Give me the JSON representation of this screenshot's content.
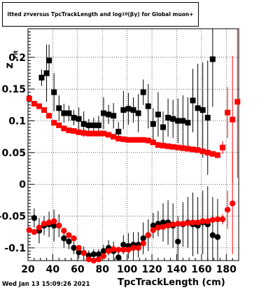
{
  "chart_data": {
    "type": "scatter",
    "title": "itted  z_{π} versus TpcTrackLength and log_{10}(βγ) for Global muon+",
    "title_parts": {
      "lead": "itted  z",
      "sub1": "π",
      "mid": " versus TpcTrackLength and log",
      "sub2": "10",
      "tail": "(βγ) for Global muon+"
    },
    "ylabel": "z",
    "ylabel_sub": "Fit",
    "xlabel": "TpcTrackLength (cm)",
    "xlim": [
      20,
      190
    ],
    "ylim": [
      -0.12,
      0.245
    ],
    "xticks": [
      20,
      40,
      60,
      80,
      100,
      120,
      140,
      160,
      180
    ],
    "xtick_labels": [
      "20",
      "40",
      "60",
      "80",
      "100",
      "120",
      "140",
      "160",
      "180"
    ],
    "yticks": [
      -0.1,
      -0.05,
      0,
      0.05,
      0.1,
      0.15,
      0.2
    ],
    "ytick_labels": [
      "-0.1",
      "-0.05",
      "0",
      "0.05",
      "0.1",
      "0.15",
      "0.2"
    ],
    "grid": true,
    "series": [
      {
        "marker": "square",
        "color": "#000000",
        "points": [
          [
            31,
            0.168,
            0.013
          ],
          [
            35,
            0.175,
            0.045
          ],
          [
            37,
            0.195,
            0.025
          ],
          [
            41,
            0.145,
            0.03
          ],
          [
            45,
            0.12,
            0.02
          ],
          [
            49,
            0.112,
            0.015
          ],
          [
            53,
            0.112,
            0.012
          ],
          [
            57,
            0.105,
            0.012
          ],
          [
            61,
            0.103,
            0.018
          ],
          [
            65,
            0.095,
            0.02
          ],
          [
            69,
            0.093,
            0.01
          ],
          [
            73,
            0.093,
            0.012
          ],
          [
            77,
            0.093,
            0.015
          ],
          [
            81,
            0.112,
            0.025
          ],
          [
            85,
            0.11,
            0.015
          ],
          [
            89,
            0.108,
            0.02
          ],
          [
            93,
            0.083,
            0.015
          ],
          [
            97,
            0.117,
            0.03
          ],
          [
            101,
            0.119,
            0.025
          ],
          [
            105,
            0.117,
            0.02
          ],
          [
            109,
            0.112,
            0.03
          ],
          [
            113,
            0.145,
            0.02
          ],
          [
            117,
            0.123,
            0.035
          ],
          [
            121,
            0.095,
            0.025
          ],
          [
            125,
            0.11,
            0.035
          ],
          [
            129,
            0.09,
            0.025
          ],
          [
            133,
            0.105,
            0.03
          ],
          [
            137,
            0.103,
            0.03
          ],
          [
            141,
            0.1,
            0.035
          ],
          [
            145,
            0.1,
            0.04
          ],
          [
            149,
            0.097,
            0.04
          ],
          [
            153,
            0.132,
            0.05
          ],
          [
            157,
            0.12,
            0.07
          ],
          [
            161,
            0.117,
            0.075
          ],
          [
            165,
            0.105,
            0.09
          ],
          [
            169,
            0.197,
            0.075
          ]
        ]
      },
      {
        "marker": "square",
        "color": "#ff0000",
        "points": [
          [
            21,
            0.135,
            0.003
          ],
          [
            25,
            0.127,
            0.003
          ],
          [
            29,
            0.123,
            0.003
          ],
          [
            33,
            0.117,
            0.003
          ],
          [
            37,
            0.108,
            0.003
          ],
          [
            41,
            0.097,
            0.002
          ],
          [
            45,
            0.093,
            0.002
          ],
          [
            49,
            0.088,
            0.002
          ],
          [
            53,
            0.085,
            0.002
          ],
          [
            57,
            0.084,
            0.002
          ],
          [
            61,
            0.082,
            0.002
          ],
          [
            65,
            0.081,
            0.002
          ],
          [
            69,
            0.08,
            0.002
          ],
          [
            73,
            0.08,
            0.002
          ],
          [
            77,
            0.08,
            0.002
          ],
          [
            81,
            0.08,
            0.002
          ],
          [
            85,
            0.078,
            0.002
          ],
          [
            89,
            0.075,
            0.002
          ],
          [
            93,
            0.072,
            0.002
          ],
          [
            97,
            0.071,
            0.002
          ],
          [
            101,
            0.07,
            0.002
          ],
          [
            105,
            0.07,
            0.002
          ],
          [
            109,
            0.07,
            0.002
          ],
          [
            113,
            0.07,
            0.002
          ],
          [
            117,
            0.069,
            0.002
          ],
          [
            121,
            0.066,
            0.002
          ],
          [
            125,
            0.062,
            0.002
          ],
          [
            129,
            0.061,
            0.002
          ],
          [
            133,
            0.06,
            0.002
          ],
          [
            137,
            0.059,
            0.002
          ],
          [
            141,
            0.058,
            0.002
          ],
          [
            145,
            0.057,
            0.002
          ],
          [
            149,
            0.056,
            0.002
          ],
          [
            153,
            0.055,
            0.002
          ],
          [
            157,
            0.054,
            0.002
          ],
          [
            161,
            0.052,
            0.003
          ],
          [
            165,
            0.05,
            0.003
          ],
          [
            169,
            0.048,
            0.004
          ],
          [
            173,
            0.046,
            0.005
          ],
          [
            177,
            0.058,
            0.01
          ],
          [
            181,
            0.113,
            0.04
          ],
          [
            185,
            0.102,
            0.1
          ],
          [
            189,
            0.13,
            0.12
          ]
        ]
      },
      {
        "marker": "circle",
        "color": "#000000",
        "points": [
          [
            25,
            -0.053,
            0.015
          ],
          [
            29,
            -0.073,
            0.02
          ],
          [
            33,
            -0.065,
            0.015
          ],
          [
            37,
            -0.063,
            0.02
          ],
          [
            41,
            -0.065,
            0.025
          ],
          [
            45,
            -0.065,
            0.018
          ],
          [
            49,
            -0.085,
            0.015
          ],
          [
            53,
            -0.09,
            0.012
          ],
          [
            57,
            -0.1,
            0.01
          ],
          [
            61,
            -0.107,
            0.01
          ],
          [
            65,
            -0.108,
            0.01
          ],
          [
            69,
            -0.112,
            0.008
          ],
          [
            73,
            -0.11,
            0.008
          ],
          [
            77,
            -0.11,
            0.008
          ],
          [
            81,
            -0.105,
            0.01
          ],
          [
            85,
            -0.1,
            0.012
          ],
          [
            89,
            -0.105,
            0.015
          ],
          [
            93,
            -0.115,
            0.015
          ],
          [
            97,
            -0.095,
            0.015
          ],
          [
            101,
            -0.097,
            0.02
          ],
          [
            105,
            -0.095,
            0.02
          ],
          [
            109,
            -0.095,
            0.02
          ],
          [
            113,
            -0.085,
            0.025
          ],
          [
            117,
            -0.08,
            0.025
          ],
          [
            121,
            -0.065,
            0.02
          ],
          [
            125,
            -0.062,
            0.02
          ],
          [
            129,
            -0.06,
            0.03
          ],
          [
            133,
            -0.06,
            0.035
          ],
          [
            137,
            -0.065,
            0.035
          ],
          [
            141,
            -0.09,
            0.04
          ],
          [
            145,
            -0.063,
            0.035
          ],
          [
            149,
            -0.06,
            0.04
          ],
          [
            153,
            -0.063,
            0.05
          ],
          [
            157,
            -0.065,
            0.045
          ],
          [
            161,
            -0.06,
            0.05
          ],
          [
            165,
            -0.063,
            0.06
          ],
          [
            169,
            -0.08,
            0.06
          ],
          [
            173,
            -0.083,
            0.06
          ]
        ]
      },
      {
        "marker": "circle",
        "color": "#ff0000",
        "points": [
          [
            21,
            -0.072,
            0.004
          ],
          [
            25,
            -0.075,
            0.004
          ],
          [
            29,
            -0.068,
            0.004
          ],
          [
            33,
            -0.062,
            0.004
          ],
          [
            37,
            -0.06,
            0.004
          ],
          [
            41,
            -0.058,
            0.004
          ],
          [
            45,
            -0.065,
            0.004
          ],
          [
            49,
            -0.073,
            0.004
          ],
          [
            53,
            -0.08,
            0.004
          ],
          [
            57,
            -0.085,
            0.004
          ],
          [
            61,
            -0.1,
            0.004
          ],
          [
            65,
            -0.108,
            0.004
          ],
          [
            69,
            -0.118,
            0.004
          ],
          [
            73,
            -0.12,
            0.004
          ],
          [
            77,
            -0.118,
            0.004
          ],
          [
            81,
            -0.113,
            0.004
          ],
          [
            85,
            -0.105,
            0.004
          ],
          [
            89,
            -0.102,
            0.004
          ],
          [
            93,
            -0.103,
            0.004
          ],
          [
            97,
            -0.103,
            0.004
          ],
          [
            101,
            -0.103,
            0.004
          ],
          [
            105,
            -0.1,
            0.004
          ],
          [
            109,
            -0.1,
            0.004
          ],
          [
            113,
            -0.093,
            0.004
          ],
          [
            117,
            -0.08,
            0.004
          ],
          [
            121,
            -0.072,
            0.004
          ],
          [
            125,
            -0.068,
            0.004
          ],
          [
            129,
            -0.067,
            0.004
          ],
          [
            133,
            -0.065,
            0.004
          ],
          [
            137,
            -0.063,
            0.004
          ],
          [
            141,
            -0.062,
            0.004
          ],
          [
            145,
            -0.062,
            0.004
          ],
          [
            149,
            -0.061,
            0.004
          ],
          [
            153,
            -0.06,
            0.004
          ],
          [
            157,
            -0.06,
            0.004
          ],
          [
            161,
            -0.058,
            0.004
          ],
          [
            165,
            -0.058,
            0.004
          ],
          [
            169,
            -0.056,
            0.004
          ],
          [
            173,
            -0.055,
            0.005
          ],
          [
            177,
            -0.055,
            0.008
          ],
          [
            181,
            -0.04,
            0.03
          ],
          [
            185,
            -0.03,
            0.08
          ]
        ]
      }
    ]
  },
  "footer": {
    "timestamp": "Wed Jan 13 15:09:26 2021"
  }
}
